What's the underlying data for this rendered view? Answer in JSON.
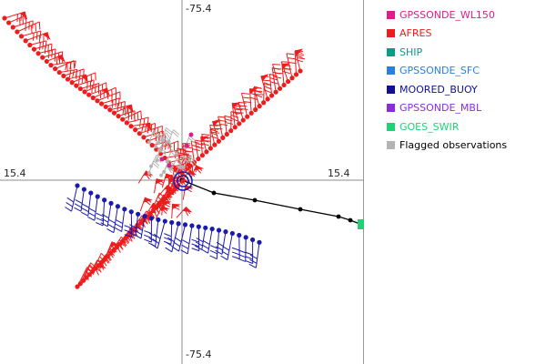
{
  "axis_labels": {
    "top": "-75.4",
    "bottom": "-75.4",
    "left": "15.4",
    "right": "15.4"
  },
  "legend": [
    {
      "label": "GPSSONDE_WL150",
      "color": "#d6208c"
    },
    {
      "label": "AFRES",
      "color": "#ee1c1c"
    },
    {
      "label": "SHIP",
      "color": "#0a9a8c"
    },
    {
      "label": "GPSSONDE_SFC",
      "color": "#2a7fe0"
    },
    {
      "label": "MOORED_BUOY",
      "color": "#101090"
    },
    {
      "label": "GPSSONDE_MBL",
      "color": "#8a2be2"
    },
    {
      "label": "GOES_SWIR",
      "color": "#1ed276"
    },
    {
      "label": "Flagged observations",
      "color": "#b4b4b4"
    }
  ],
  "colors": {
    "afres": "#ee1c1c",
    "buoy": "#1a1ab0",
    "track": "#000000",
    "flagged": "#b4b4b4",
    "pink": "#d6208c",
    "center": "#1a1ab0",
    "goes": "#1ed276"
  }
}
